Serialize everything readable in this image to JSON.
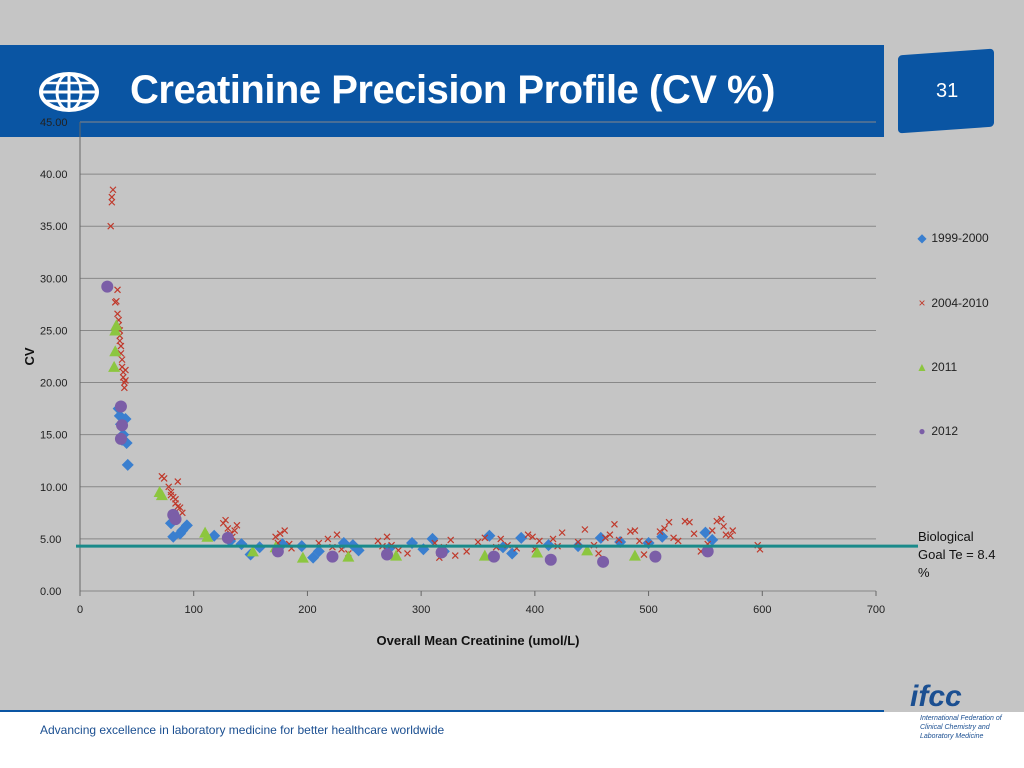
{
  "slide": {
    "title": "Creatinine  Precision Profile (CV %)",
    "page_number": "31",
    "tagline": "Advancing excellence in laboratory medicine for better healthcare worldwide",
    "logo_text": "ifcc",
    "logo_subtitle": "International Federation of Clinical Chemistry and Laboratory Medicine",
    "biological_goal_label": "Biological Goal Te = 8.4 %",
    "colors": {
      "brand_blue": "#0a55a3",
      "background": "#c5c5c5",
      "goal_line": "#1a8a8a"
    },
    "icons": [
      "globe-icon"
    ]
  },
  "chart_data": {
    "type": "scatter",
    "xlabel": "Overall Mean Creatinine (umol/L)",
    "ylabel": "CV",
    "xlim": [
      0,
      700
    ],
    "ylim": [
      0,
      45
    ],
    "x_ticks": [
      "0",
      "100",
      "200",
      "300",
      "400",
      "500",
      "600",
      "700"
    ],
    "y_ticks": [
      "0.00",
      "5.00",
      "10.00",
      "15.00",
      "20.00",
      "25.00",
      "30.00",
      "35.00",
      "40.00",
      "45.00"
    ],
    "grid": "horizontal",
    "legend_position": "right",
    "reference_line": {
      "y": 4.3,
      "label": "Biological Goal Te = 8.4 %"
    },
    "series": [
      {
        "name": "1999-2000",
        "marker": "diamond",
        "color": "#3a7fcf",
        "points": [
          [
            34,
            17.5
          ],
          [
            35,
            16.8
          ],
          [
            36,
            16
          ],
          [
            38,
            15
          ],
          [
            37,
            14.5
          ],
          [
            40,
            16.5
          ],
          [
            41,
            14.2
          ],
          [
            42,
            12.1
          ],
          [
            80,
            6.5
          ],
          [
            82,
            5.2
          ],
          [
            88,
            5.5
          ],
          [
            90,
            5.8
          ],
          [
            94,
            6.3
          ],
          [
            118,
            5.3
          ],
          [
            132,
            4.8
          ],
          [
            142,
            4.5
          ],
          [
            150,
            3.5
          ],
          [
            158,
            4.2
          ],
          [
            178,
            4.5
          ],
          [
            195,
            4.3
          ],
          [
            205,
            3.2
          ],
          [
            210,
            3.8
          ],
          [
            232,
            4.6
          ],
          [
            240,
            4.4
          ],
          [
            245,
            3.9
          ],
          [
            272,
            4.1
          ],
          [
            292,
            4.6
          ],
          [
            302,
            4
          ],
          [
            310,
            5
          ],
          [
            320,
            3.8
          ],
          [
            360,
            5.3
          ],
          [
            372,
            4.2
          ],
          [
            380,
            3.6
          ],
          [
            388,
            5.1
          ],
          [
            412,
            4.4
          ],
          [
            438,
            4.3
          ],
          [
            458,
            5.1
          ],
          [
            475,
            4.7
          ],
          [
            500,
            4.6
          ],
          [
            512,
            5.2
          ],
          [
            550,
            5.6
          ],
          [
            556,
            4.9
          ]
        ]
      },
      {
        "name": "2004-2010",
        "marker": "x",
        "color": "#c0392b",
        "points": [
          [
            27,
            35
          ],
          [
            28,
            37.3
          ],
          [
            28,
            37.8
          ],
          [
            29,
            38.5
          ],
          [
            31,
            27.7
          ],
          [
            32,
            27.8
          ],
          [
            33,
            28.9
          ],
          [
            33,
            26.6
          ],
          [
            34,
            26
          ],
          [
            34,
            25.5
          ],
          [
            35,
            25
          ],
          [
            35,
            24.5
          ],
          [
            35,
            24
          ],
          [
            36,
            23.5
          ],
          [
            36,
            22.8
          ],
          [
            37,
            22.2
          ],
          [
            37,
            21.5
          ],
          [
            38,
            21
          ],
          [
            38,
            20.5
          ],
          [
            39,
            20
          ],
          [
            39,
            19.5
          ],
          [
            40,
            20.2
          ],
          [
            40,
            21.2
          ],
          [
            72,
            11
          ],
          [
            74,
            10.8
          ],
          [
            78,
            10
          ],
          [
            80,
            9.5
          ],
          [
            80,
            9.2
          ],
          [
            82,
            9
          ],
          [
            84,
            8.8
          ],
          [
            84,
            8.4
          ],
          [
            86,
            8.1
          ],
          [
            86,
            10.5
          ],
          [
            88,
            8
          ],
          [
            90,
            7.5
          ],
          [
            126,
            6.5
          ],
          [
            128,
            6.8
          ],
          [
            130,
            6
          ],
          [
            132,
            5.5
          ],
          [
            134,
            5.2
          ],
          [
            136,
            5.8
          ],
          [
            138,
            6.3
          ],
          [
            172,
            5.2
          ],
          [
            174,
            4.6
          ],
          [
            176,
            5.5
          ],
          [
            180,
            5.8
          ],
          [
            184,
            4.5
          ],
          [
            186,
            4.1
          ],
          [
            210,
            4.6
          ],
          [
            218,
            5
          ],
          [
            222,
            4.2
          ],
          [
            226,
            5.4
          ],
          [
            230,
            4
          ],
          [
            236,
            3.6
          ],
          [
            262,
            4.8
          ],
          [
            266,
            4.3
          ],
          [
            270,
            5.2
          ],
          [
            274,
            4.4
          ],
          [
            280,
            3.9
          ],
          [
            288,
            3.6
          ],
          [
            312,
            4.6
          ],
          [
            316,
            3.2
          ],
          [
            320,
            4.2
          ],
          [
            326,
            4.9
          ],
          [
            330,
            3.4
          ],
          [
            340,
            3.8
          ],
          [
            350,
            4.7
          ],
          [
            356,
            5.1
          ],
          [
            366,
            4.2
          ],
          [
            370,
            5
          ],
          [
            376,
            4.4
          ],
          [
            384,
            4.1
          ],
          [
            394,
            5.4
          ],
          [
            398,
            5.2
          ],
          [
            400,
            4
          ],
          [
            404,
            4.8
          ],
          [
            416,
            5
          ],
          [
            420,
            4.3
          ],
          [
            424,
            5.6
          ],
          [
            438,
            4.7
          ],
          [
            444,
            5.9
          ],
          [
            452,
            4.4
          ],
          [
            456,
            3.6
          ],
          [
            462,
            5.1
          ],
          [
            466,
            5.4
          ],
          [
            470,
            6.4
          ],
          [
            474,
            4.9
          ],
          [
            484,
            5.7
          ],
          [
            488,
            5.8
          ],
          [
            492,
            4.8
          ],
          [
            496,
            3.5
          ],
          [
            500,
            4.5
          ],
          [
            510,
            5.7
          ],
          [
            514,
            6
          ],
          [
            518,
            6.6
          ],
          [
            522,
            5.1
          ],
          [
            526,
            4.8
          ],
          [
            532,
            6.7
          ],
          [
            536,
            6.6
          ],
          [
            540,
            5.5
          ],
          [
            546,
            3.8
          ],
          [
            552,
            4.5
          ],
          [
            556,
            5.8
          ],
          [
            560,
            6.7
          ],
          [
            564,
            6.9
          ],
          [
            566,
            6.2
          ],
          [
            568,
            5.4
          ],
          [
            572,
            5.3
          ],
          [
            574,
            5.8
          ],
          [
            596,
            4.4
          ],
          [
            598,
            4
          ]
        ]
      },
      {
        "name": "2011",
        "marker": "triangle",
        "color": "#8cc63f",
        "points": [
          [
            31,
            25
          ],
          [
            32,
            25.5
          ],
          [
            31,
            23
          ],
          [
            30,
            21.5
          ],
          [
            70,
            9.5
          ],
          [
            72,
            9.2
          ],
          [
            110,
            5.6
          ],
          [
            112,
            5.2
          ],
          [
            152,
            3.8
          ],
          [
            172,
            4.2
          ],
          [
            196,
            3.2
          ],
          [
            236,
            3.3
          ],
          [
            278,
            3.4
          ],
          [
            356,
            3.4
          ],
          [
            402,
            3.7
          ],
          [
            446,
            3.9
          ],
          [
            488,
            3.4
          ]
        ]
      },
      {
        "name": "2012",
        "marker": "circle",
        "color": "#7b5ea7",
        "points": [
          [
            24,
            29.2
          ],
          [
            36,
            17.7
          ],
          [
            37,
            15.9
          ],
          [
            36,
            14.6
          ],
          [
            82,
            7.3
          ],
          [
            84,
            6.9
          ],
          [
            130,
            5.1
          ],
          [
            174,
            3.8
          ],
          [
            222,
            3.3
          ],
          [
            270,
            3.5
          ],
          [
            318,
            3.7
          ],
          [
            364,
            3.3
          ],
          [
            414,
            3
          ],
          [
            460,
            2.8
          ],
          [
            506,
            3.3
          ],
          [
            552,
            3.8
          ]
        ]
      }
    ]
  }
}
